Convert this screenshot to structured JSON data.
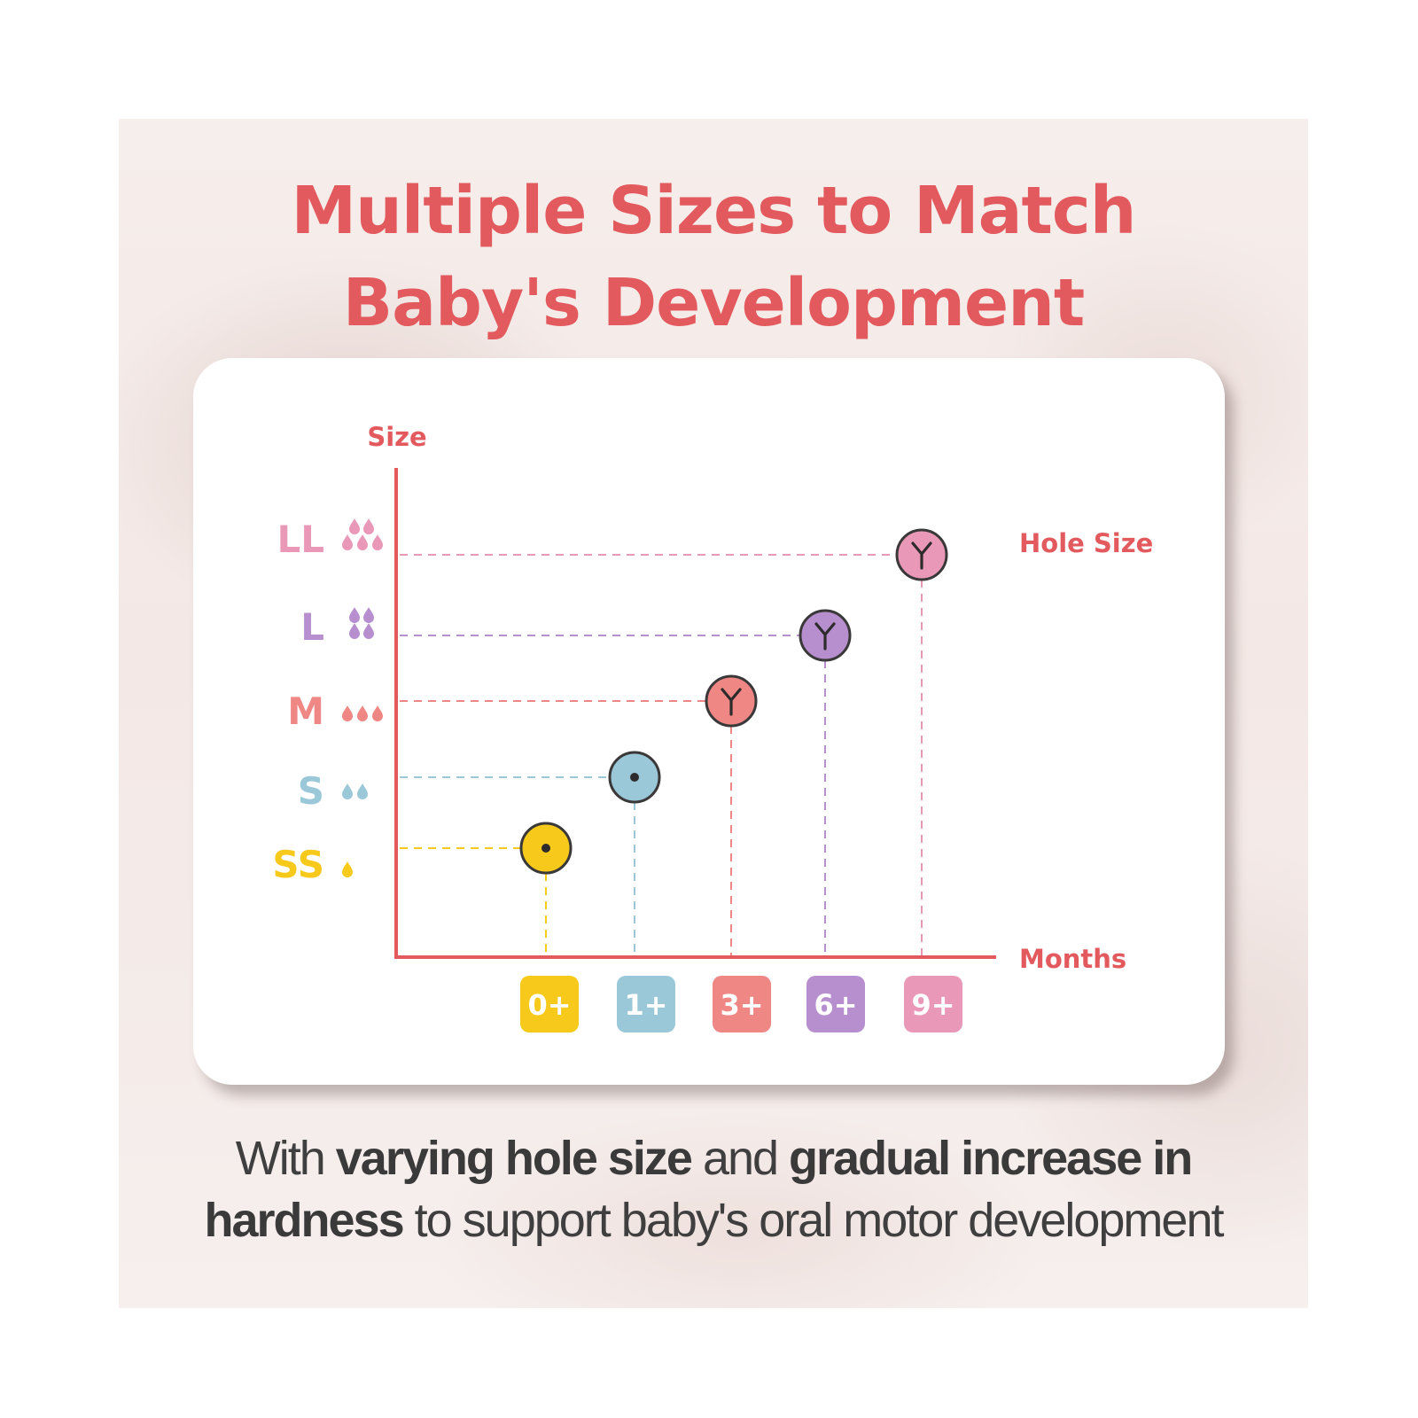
{
  "title": {
    "line1": "Multiple Sizes to Match",
    "line2": "Baby's Development"
  },
  "colors": {
    "accent": "#e35a5e",
    "SS": "#f6c91b",
    "S": "#9ac8d8",
    "M": "#ef8785",
    "L": "#b78fcf",
    "LL": "#ea98b8"
  },
  "chart_data": {
    "type": "scatter",
    "ylabel": "Size",
    "xlabel": "Months",
    "legend_label": "Hole Size",
    "y_categories": [
      {
        "label": "SS",
        "drops": 1,
        "color": "#f6c91b"
      },
      {
        "label": "S",
        "drops": 2,
        "color": "#9ac8d8"
      },
      {
        "label": "M",
        "drops": 3,
        "color": "#ef8785"
      },
      {
        "label": "L",
        "drops": 4,
        "color": "#b78fcf"
      },
      {
        "label": "LL",
        "drops": 5,
        "color": "#ea98b8"
      }
    ],
    "x_categories": [
      {
        "label": "0+",
        "color": "#f6c91b"
      },
      {
        "label": "1+",
        "color": "#9ac8d8"
      },
      {
        "label": "3+",
        "color": "#ef8785"
      },
      {
        "label": "6+",
        "color": "#b78fcf"
      },
      {
        "label": "9+",
        "color": "#ea98b8"
      }
    ],
    "points": [
      {
        "x": "0+",
        "y": "SS",
        "hole": "dot",
        "color": "#f6c91b"
      },
      {
        "x": "1+",
        "y": "S",
        "hole": "dot",
        "color": "#9ac8d8"
      },
      {
        "x": "3+",
        "y": "M",
        "hole": "Y",
        "color": "#ef8785"
      },
      {
        "x": "6+",
        "y": "L",
        "hole": "Y",
        "color": "#b78fcf"
      },
      {
        "x": "9+",
        "y": "LL",
        "hole": "Y",
        "color": "#ea98b8"
      }
    ]
  },
  "caption": {
    "p1": "With ",
    "b1": "varying hole size",
    "p2": " and ",
    "b2": "gradual increase in",
    "b3": "hardness",
    "p3": " to support baby's oral motor development"
  }
}
